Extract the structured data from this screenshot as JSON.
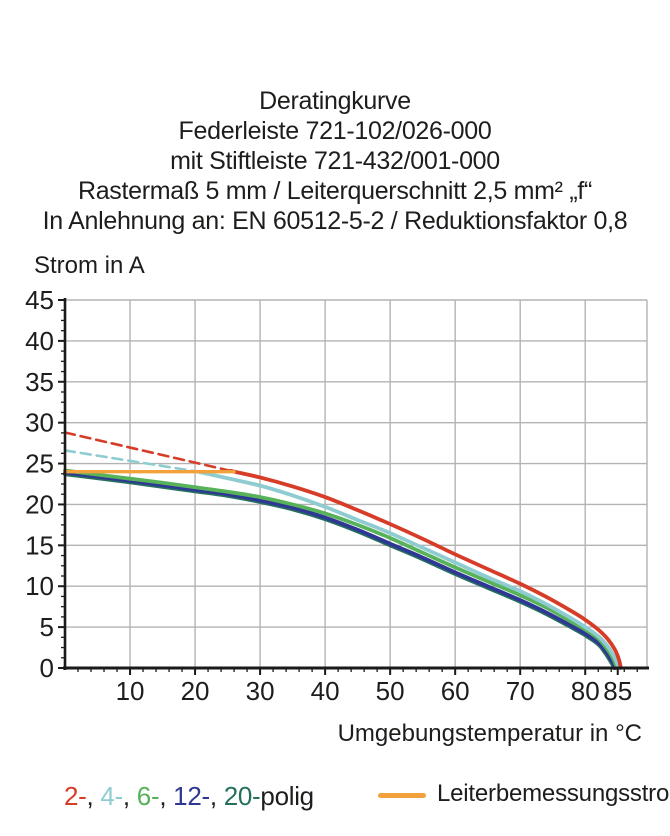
{
  "title_block": {
    "lines": [
      "Deratingkurve",
      "Federleiste 721-102/026-000",
      "mit Stiftleiste 721-432/001-000",
      "Rastermaß 5 mm / Leiterquerschnitt 2,5 mm² „f“",
      "In Anlehnung an: EN 60512-5-2 / Reduktionsfaktor 0,8"
    ]
  },
  "chart_data": {
    "type": "line",
    "title": "Deratingkurve",
    "xlabel": "Umgebungstemperatur in °C",
    "ylabel": "Strom in A",
    "xlim": [
      0,
      89.5
    ],
    "ylim": [
      0,
      45
    ],
    "x_tick_labels": [
      10,
      20,
      30,
      40,
      50,
      60,
      70,
      80,
      85
    ],
    "x_gridlines": [
      10,
      20,
      30,
      40,
      50,
      60,
      70,
      80
    ],
    "y_tick_labels": [
      0,
      5,
      10,
      15,
      20,
      25,
      30,
      35,
      40,
      45
    ],
    "y_gridlines": [
      5,
      10,
      15,
      20,
      25,
      30,
      35,
      40
    ],
    "x_minor_tick_step": 2,
    "y_minor_tick_step": 1.25,
    "grid": true,
    "grid_color": "#b3b3b3",
    "axis_color": "#1a1a1a",
    "tick_label_color": "#1d1d1b",
    "legend_position": "bottom",
    "series": [
      {
        "name": "20-polig",
        "color": "#25705c",
        "width": 3.8,
        "segments": [
          {
            "style": "solid",
            "points": [
              [
                0,
                23.7
              ],
              [
                5,
                23.2
              ],
              [
                10,
                22.7
              ],
              [
                15,
                22.15
              ],
              [
                20,
                21.6
              ],
              [
                25,
                21.05
              ],
              [
                30,
                20.3
              ],
              [
                35,
                19.4
              ],
              [
                40,
                18.2
              ],
              [
                45,
                16.7
              ],
              [
                50,
                15.0
              ],
              [
                55,
                13.3
              ],
              [
                60,
                11.5
              ],
              [
                65,
                9.8
              ],
              [
                70,
                8.1
              ],
              [
                74,
                6.6
              ],
              [
                78,
                4.9
              ],
              [
                80,
                4.0
              ],
              [
                82,
                2.9
              ],
              [
                83.1,
                1.8
              ],
              [
                83.9,
                0.8
              ],
              [
                84.35,
                0.2
              ],
              [
                84.45,
                0
              ]
            ]
          }
        ]
      },
      {
        "name": "12-polig",
        "color": "#2f3795",
        "width": 3.8,
        "segments": [
          {
            "style": "solid",
            "points": [
              [
                0,
                23.9
              ],
              [
                5,
                23.4
              ],
              [
                10,
                22.9
              ],
              [
                15,
                22.35
              ],
              [
                20,
                21.8
              ],
              [
                25,
                21.25
              ],
              [
                30,
                20.5
              ],
              [
                35,
                19.6
              ],
              [
                40,
                18.4
              ],
              [
                45,
                16.9
              ],
              [
                50,
                15.2
              ],
              [
                55,
                13.5
              ],
              [
                60,
                11.7
              ],
              [
                65,
                10.0
              ],
              [
                70,
                8.3
              ],
              [
                74,
                6.8
              ],
              [
                78,
                5.1
              ],
              [
                80,
                4.2
              ],
              [
                82,
                3.1
              ],
              [
                83.2,
                2.0
              ],
              [
                84.0,
                1.0
              ],
              [
                84.5,
                0.3
              ],
              [
                84.6,
                0
              ]
            ]
          }
        ]
      },
      {
        "name": "6-polig",
        "color": "#57b259",
        "width": 3.8,
        "segments": [
          {
            "style": "solid",
            "points": [
              [
                0,
                24.15
              ],
              [
                5,
                23.65
              ],
              [
                10,
                23.15
              ],
              [
                15,
                22.65
              ],
              [
                20,
                22.1
              ],
              [
                25,
                21.55
              ],
              [
                30,
                20.9
              ],
              [
                35,
                20.0
              ],
              [
                40,
                18.9
              ],
              [
                45,
                17.5
              ],
              [
                50,
                15.9
              ],
              [
                55,
                14.1
              ],
              [
                60,
                12.3
              ],
              [
                65,
                10.6
              ],
              [
                70,
                8.9
              ],
              [
                74,
                7.4
              ],
              [
                78,
                5.6
              ],
              [
                80,
                4.7
              ],
              [
                82,
                3.6
              ],
              [
                83.3,
                2.4
              ],
              [
                84.2,
                1.3
              ],
              [
                84.7,
                0.4
              ],
              [
                84.8,
                0
              ]
            ]
          }
        ]
      },
      {
        "name": "4-polig",
        "color": "#8fccd1",
        "width": 3.8,
        "segments": [
          {
            "style": "dashed",
            "points": [
              [
                0,
                26.6
              ],
              [
                20.5,
                24.0
              ]
            ]
          },
          {
            "style": "solid",
            "points": [
              [
                20.5,
                24.0
              ],
              [
                25,
                23.2
              ],
              [
                30,
                22.3
              ],
              [
                35,
                21.1
              ],
              [
                40,
                19.7
              ],
              [
                45,
                18.1
              ],
              [
                50,
                16.5
              ],
              [
                55,
                14.7
              ],
              [
                60,
                12.9
              ],
              [
                65,
                11.1
              ],
              [
                70,
                9.4
              ],
              [
                74,
                7.8
              ],
              [
                78,
                6.0
              ],
              [
                80,
                5.0
              ],
              [
                82,
                3.9
              ],
              [
                83.3,
                2.8
              ],
              [
                84.3,
                1.6
              ],
              [
                84.9,
                0.6
              ],
              [
                85.05,
                0
              ]
            ]
          }
        ]
      },
      {
        "name": "2-polig",
        "color": "#d63c28",
        "width": 3.8,
        "segments": [
          {
            "style": "dashed",
            "points": [
              [
                0,
                28.8
              ],
              [
                25.5,
                24.1
              ]
            ]
          },
          {
            "style": "solid",
            "points": [
              [
                25.5,
                24.1
              ],
              [
                30,
                23.3
              ],
              [
                35,
                22.2
              ],
              [
                40,
                20.9
              ],
              [
                45,
                19.3
              ],
              [
                50,
                17.6
              ],
              [
                55,
                15.8
              ],
              [
                60,
                13.9
              ],
              [
                65,
                12.1
              ],
              [
                70,
                10.3
              ],
              [
                74,
                8.7
              ],
              [
                78,
                6.9
              ],
              [
                80,
                5.9
              ],
              [
                82,
                4.7
              ],
              [
                83.5,
                3.5
              ],
              [
                84.6,
                2.2
              ],
              [
                85.2,
                1.0
              ],
              [
                85.4,
                0.3
              ],
              [
                85.45,
                0
              ]
            ]
          }
        ]
      },
      {
        "name": "Leiterbemessungsstrom",
        "color": "#f2a13b",
        "width": 3.4,
        "segments": [
          {
            "style": "solid",
            "points": [
              [
                0,
                24
              ],
              [
                26,
                24
              ]
            ]
          }
        ]
      }
    ]
  },
  "legend": {
    "poles": [
      {
        "label": "2-",
        "color": "#d63c28"
      },
      {
        "label": "4-",
        "color": "#8fccd1"
      },
      {
        "label": "6-",
        "color": "#57b259"
      },
      {
        "label": "12-",
        "color": "#2f3795"
      },
      {
        "label": "20-",
        "color": "#25705c"
      }
    ],
    "separator": ", ",
    "suffix": "polig",
    "rated": {
      "label": "Leiterbemessungsstrom",
      "color": "#f2a13b"
    }
  }
}
